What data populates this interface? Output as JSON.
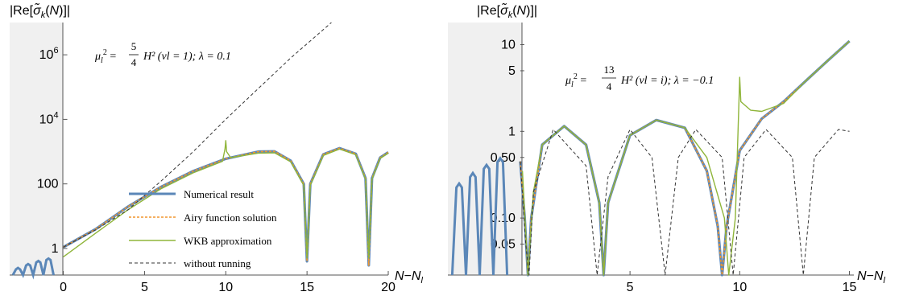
{
  "chart_data": [
    {
      "type": "line",
      "ylabel": "|Re[σ̃k(N)]|",
      "xlabel": "N−Nl",
      "yscale": "log",
      "xlim": [
        -3.3,
        20
      ],
      "ylim": [
        0.15,
        10000000
      ],
      "x_ticks": [
        {
          "v": 0,
          "label": "0"
        },
        {
          "v": 5,
          "label": "5"
        },
        {
          "v": 10,
          "label": "10"
        },
        {
          "v": 15,
          "label": "15"
        },
        {
          "v": 20,
          "label": "20"
        }
      ],
      "y_ticks": [
        {
          "v": 1,
          "label": "1"
        },
        {
          "v": 100,
          "label": "100"
        },
        {
          "v": 10000,
          "label": "10^4"
        },
        {
          "v": 1000000,
          "label": "10^6"
        }
      ],
      "shaded_region": [
        -3.3,
        0
      ],
      "annotation": {
        "mu": "μl",
        "num": "5",
        "den": "4",
        "rest": "H²  (νl = 1);    λ = 0.1"
      },
      "legend_position": "center",
      "series": [
        {
          "name": "Numerical result",
          "color": "#5b87b8",
          "style": "thick",
          "points": [
            [
              0,
              1.1
            ],
            [
              2,
              4
            ],
            [
              4,
              20
            ],
            [
              6,
              80
            ],
            [
              8,
              250
            ],
            [
              10,
              600
            ],
            [
              12,
              1000
            ],
            [
              13,
              1020
            ],
            [
              14,
              520
            ],
            [
              14.8,
              100
            ],
            [
              15,
              0.4
            ],
            [
              15.2,
              100
            ],
            [
              16,
              820
            ],
            [
              17,
              1280
            ],
            [
              18,
              860
            ],
            [
              18.6,
              150
            ],
            [
              18.8,
              0.3
            ],
            [
              19,
              150
            ],
            [
              19.5,
              650
            ],
            [
              20,
              950
            ]
          ]
        },
        {
          "name": "Airy function solution",
          "color": "#f0962e",
          "style": "dashed",
          "points": [
            [
              0,
              1.1
            ],
            [
              2,
              4
            ],
            [
              4,
              20
            ],
            [
              6,
              80
            ],
            [
              8,
              250
            ],
            [
              10,
              600
            ],
            [
              12,
              1000
            ],
            [
              13,
              1020
            ],
            [
              14,
              520
            ],
            [
              14.8,
              100
            ],
            [
              15,
              0.4
            ],
            [
              15.2,
              100
            ],
            [
              16,
              820
            ],
            [
              17,
              1280
            ],
            [
              18,
              860
            ],
            [
              18.6,
              150
            ],
            [
              18.8,
              0.3
            ],
            [
              19,
              150
            ],
            [
              19.5,
              650
            ],
            [
              20,
              950
            ]
          ]
        },
        {
          "name": "WKB approximation",
          "color": "#8fb53a",
          "style": "thin",
          "points": [
            [
              0,
              0.55
            ],
            [
              2,
              3
            ],
            [
              4,
              16
            ],
            [
              6,
              70
            ],
            [
              8,
              220
            ],
            [
              9.8,
              500
            ],
            [
              9.95,
              1200
            ],
            [
              10,
              2200
            ],
            [
              10.05,
              1000
            ],
            [
              10.3,
              650
            ],
            [
              12,
              900
            ],
            [
              13,
              920
            ],
            [
              14,
              480
            ],
            [
              14.8,
              90
            ],
            [
              15,
              0.5
            ],
            [
              15.2,
              90
            ],
            [
              16,
              760
            ],
            [
              17,
              1200
            ],
            [
              18,
              800
            ],
            [
              18.6,
              140
            ],
            [
              18.8,
              0.5
            ],
            [
              19,
              140
            ],
            [
              19.5,
              620
            ],
            [
              20,
              900
            ]
          ]
        },
        {
          "name": "without running",
          "color": "#333333",
          "style": "dashed",
          "points": [
            [
              0,
              1.1
            ],
            [
              2,
              3.8
            ],
            [
              4,
              16
            ],
            [
              6,
              120
            ],
            [
              8,
              1000
            ],
            [
              10,
              10000
            ],
            [
              12,
              90000
            ],
            [
              14,
              800000
            ],
            [
              16,
              6000000
            ],
            [
              16.5,
              10000000
            ]
          ]
        }
      ]
    },
    {
      "type": "line",
      "ylabel": "|Re[σ̃k(N)]|",
      "xlabel": "N−Nl",
      "yscale": "log",
      "xlim": [
        -3.3,
        15.2
      ],
      "ylim": [
        0.022,
        18
      ],
      "x_ticks": [
        {
          "v": 5,
          "label": "5"
        },
        {
          "v": 10,
          "label": "10"
        },
        {
          "v": 15,
          "label": "15"
        }
      ],
      "y_ticks": [
        {
          "v": 0.05,
          "label": "0.05"
        },
        {
          "v": 0.1,
          "label": "0.10"
        },
        {
          "v": 0.5,
          "label": "0.50"
        },
        {
          "v": 1,
          "label": "1"
        },
        {
          "v": 5,
          "label": "5"
        },
        {
          "v": 10,
          "label": "10"
        }
      ],
      "shaded_region": [
        -3.3,
        0
      ],
      "annotation": {
        "mu": "μl",
        "num": "13",
        "den": "4",
        "rest": "H²  (νl = i);    λ = −0.1"
      },
      "series": [
        {
          "name": "Numerical result",
          "color": "#5b87b8",
          "style": "thick",
          "points": [
            [
              0,
              0.45
            ],
            [
              0.2,
              0.1
            ],
            [
              0.35,
              0.02
            ],
            [
              0.5,
              0.1
            ],
            [
              1,
              0.7
            ],
            [
              2,
              1.15
            ],
            [
              3,
              0.7
            ],
            [
              3.6,
              0.15
            ],
            [
              3.8,
              0.02
            ],
            [
              4,
              0.15
            ],
            [
              5,
              0.9
            ],
            [
              6.2,
              1.35
            ],
            [
              7.5,
              1.1
            ],
            [
              8.5,
              0.35
            ],
            [
              9,
              0.08
            ],
            [
              9.2,
              0.02
            ],
            [
              9.4,
              0.08
            ],
            [
              10,
              0.6
            ],
            [
              11,
              1.4
            ],
            [
              12,
              2.2
            ],
            [
              13,
              3.8
            ],
            [
              14,
              6.5
            ],
            [
              15,
              11
            ]
          ]
        },
        {
          "name": "Airy function solution",
          "color": "#f0962e",
          "style": "dashed",
          "points": [
            [
              0,
              0.45
            ],
            [
              0.2,
              0.1
            ],
            [
              0.35,
              0.02
            ],
            [
              0.5,
              0.1
            ],
            [
              1,
              0.7
            ],
            [
              2,
              1.15
            ],
            [
              3,
              0.7
            ],
            [
              3.6,
              0.15
            ],
            [
              3.8,
              0.02
            ],
            [
              4,
              0.15
            ],
            [
              5,
              0.9
            ],
            [
              6.2,
              1.35
            ],
            [
              7.5,
              1.1
            ],
            [
              8.5,
              0.35
            ],
            [
              9,
              0.08
            ],
            [
              9.2,
              0.02
            ],
            [
              9.4,
              0.08
            ],
            [
              10,
              0.6
            ],
            [
              11,
              1.4
            ],
            [
              12,
              2.2
            ],
            [
              13,
              3.8
            ],
            [
              14,
              6.5
            ],
            [
              15,
              11
            ]
          ]
        },
        {
          "name": "WKB approximation",
          "color": "#8fb53a",
          "style": "thin",
          "points": [
            [
              0.1,
              0.35
            ],
            [
              0.35,
              0.02
            ],
            [
              0.6,
              0.2
            ],
            [
              1,
              0.7
            ],
            [
              2,
              1.15
            ],
            [
              3,
              0.7
            ],
            [
              3.6,
              0.15
            ],
            [
              3.8,
              0.02
            ],
            [
              4,
              0.15
            ],
            [
              5,
              0.9
            ],
            [
              6.2,
              1.35
            ],
            [
              7.5,
              1.1
            ],
            [
              8.5,
              0.5
            ],
            [
              9.3,
              0.1
            ],
            [
              9.5,
              0.02
            ],
            [
              9.8,
              0.1
            ],
            [
              10,
              4.2
            ],
            [
              10.05,
              2.2
            ],
            [
              10.5,
              1.75
            ],
            [
              11,
              1.7
            ],
            [
              12,
              2.1
            ],
            [
              13,
              3.8
            ],
            [
              14,
              6.5
            ],
            [
              15,
              11
            ]
          ]
        },
        {
          "name": "without running",
          "color": "#333333",
          "style": "dashed",
          "points": [
            [
              0,
              0.45
            ],
            [
              0.25,
              0.05
            ],
            [
              0.4,
              0.02
            ],
            [
              0.6,
              0.2
            ],
            [
              1.5,
              1.05
            ],
            [
              3,
              0.4
            ],
            [
              3.5,
              0.02
            ],
            [
              4,
              0.3
            ],
            [
              5,
              1.05
            ],
            [
              6,
              0.5
            ],
            [
              6.6,
              0.02
            ],
            [
              7.2,
              0.5
            ],
            [
              8,
              1.05
            ],
            [
              9.2,
              0.5
            ],
            [
              9.7,
              0.02
            ],
            [
              10.2,
              0.5
            ],
            [
              11.2,
              1.05
            ],
            [
              12.4,
              0.5
            ],
            [
              12.9,
              0.02
            ],
            [
              13.4,
              0.5
            ],
            [
              14.5,
              1.05
            ],
            [
              15,
              1.0
            ]
          ]
        }
      ]
    }
  ]
}
